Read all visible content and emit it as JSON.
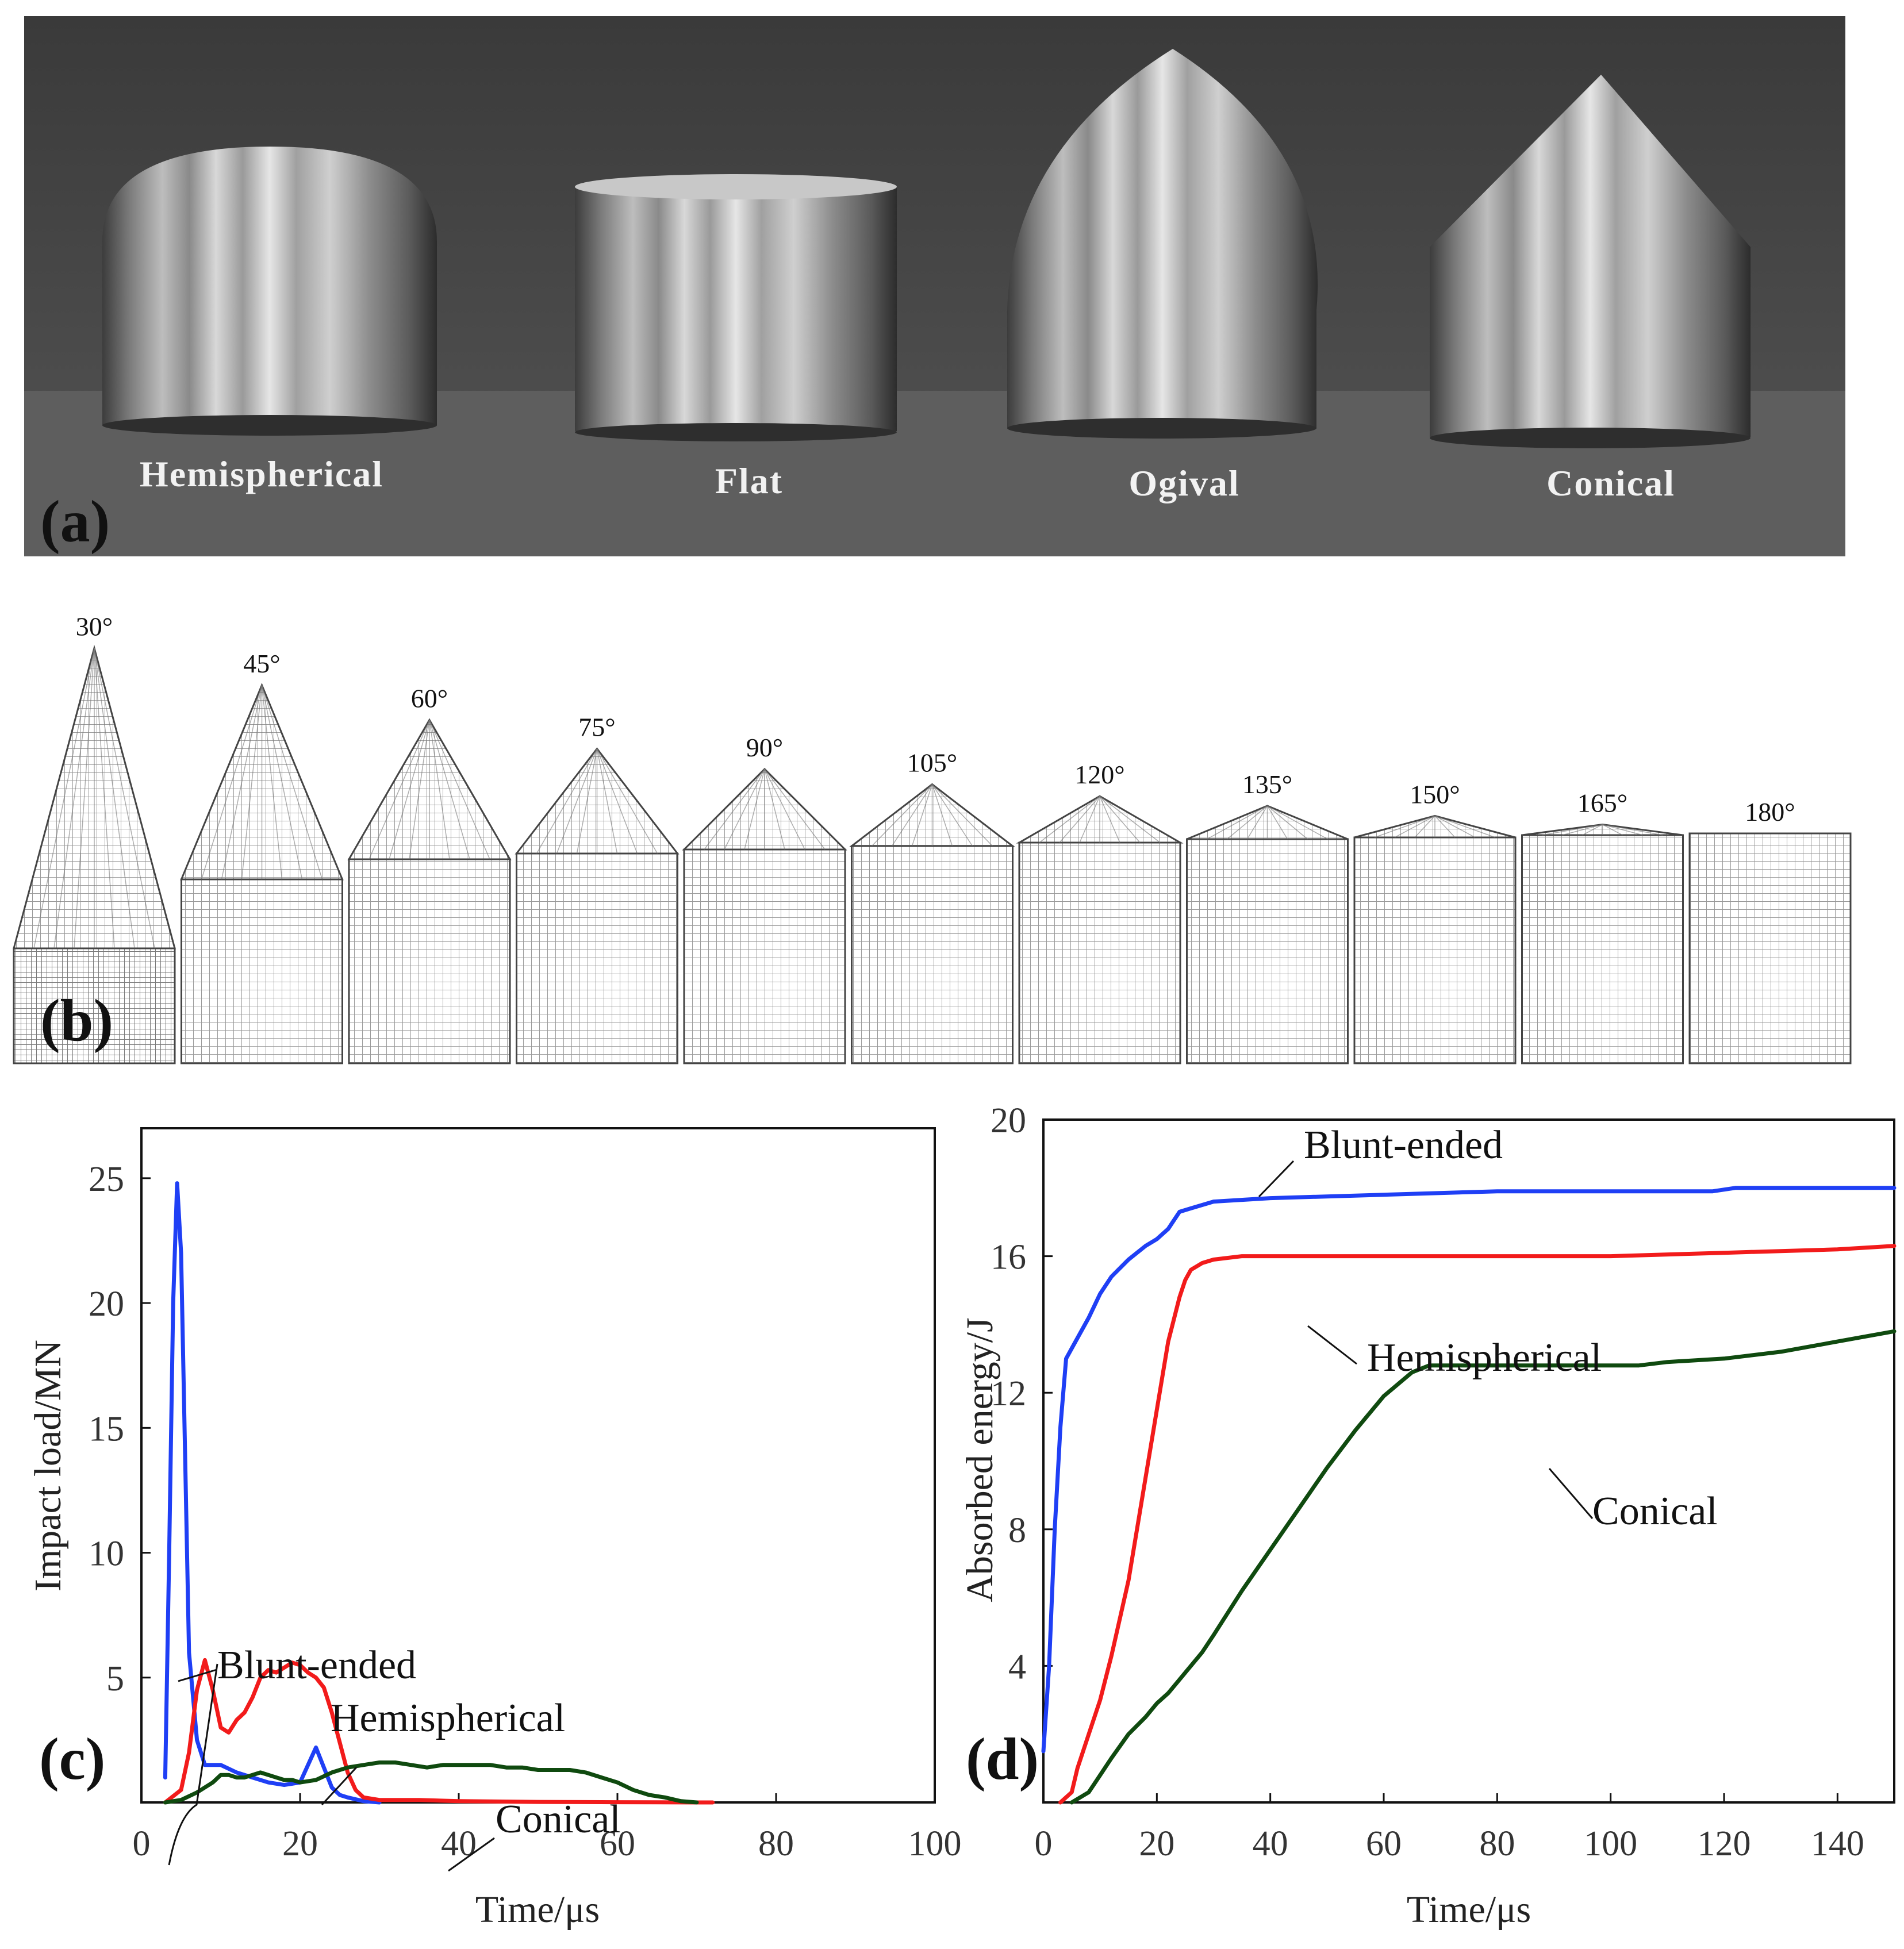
{
  "panel_a": {
    "label": "(a)",
    "projectiles": [
      {
        "name": "Hemispherical"
      },
      {
        "name": "Flat"
      },
      {
        "name": "Ogival"
      },
      {
        "name": "Conical"
      }
    ]
  },
  "panel_b": {
    "label": "(b)",
    "angles": [
      "30°",
      "45°",
      "60°",
      "75°",
      "90°",
      "105°",
      "120°",
      "135°",
      "150°",
      "165°",
      "180°"
    ]
  },
  "panel_c": {
    "label": "(c)",
    "annotations": {
      "blunt": "Blunt-ended",
      "hemi": "Hemispherical",
      "conical": "Conical"
    }
  },
  "panel_d": {
    "label": "(d)",
    "annotations": {
      "blunt": "Blunt-ended",
      "hemi": "Hemispherical",
      "conical": "Conical"
    }
  },
  "chart_data": [
    {
      "type": "line",
      "panel": "(c)",
      "title": "",
      "xlabel": "Time/μs",
      "ylabel": "Impact load/MN",
      "xlim": [
        0,
        100
      ],
      "ylim": [
        0,
        27
      ],
      "xticks": [
        "0",
        "20",
        "40",
        "60",
        "80",
        "100"
      ],
      "yticks": [
        "5",
        "10",
        "15",
        "20",
        "25"
      ],
      "series": [
        {
          "name": "Blunt-ended",
          "color": "#1f3ff5",
          "x": [
            3,
            3.5,
            4,
            4.5,
            5,
            5.5,
            6,
            7,
            8,
            10,
            12,
            14,
            16,
            18,
            20,
            21,
            22,
            23,
            24,
            25,
            26,
            28,
            30
          ],
          "y": [
            1,
            10,
            20,
            24.8,
            22,
            14,
            6,
            2.5,
            1.5,
            1.5,
            1.2,
            1.0,
            0.8,
            0.7,
            0.8,
            1.5,
            2.2,
            1.4,
            0.6,
            0.3,
            0.2,
            0.05,
            0
          ]
        },
        {
          "name": "Hemispherical",
          "color": "#f21b1b",
          "x": [
            3,
            5,
            6,
            7,
            8,
            9,
            10,
            11,
            12,
            13,
            14,
            15,
            16,
            17,
            18,
            19,
            20,
            21,
            22,
            23,
            24,
            25,
            26,
            27,
            28,
            30,
            35,
            40,
            50,
            60,
            70,
            72
          ],
          "y": [
            0,
            0.5,
            2,
            4.5,
            5.7,
            4.5,
            3,
            2.8,
            3.3,
            3.6,
            4.2,
            5.0,
            5.3,
            5.2,
            5.4,
            5.6,
            5.5,
            5.2,
            5.0,
            4.6,
            3.6,
            2.4,
            1.2,
            0.5,
            0.2,
            0.1,
            0.1,
            0.05,
            0.02,
            0.01,
            0,
            0
          ]
        },
        {
          "name": "Conical",
          "color": "#0f4a0f",
          "x": [
            3,
            5,
            7,
            9,
            10,
            11,
            12,
            13,
            14,
            15,
            16,
            17,
            18,
            19,
            20,
            22,
            24,
            26,
            28,
            30,
            32,
            34,
            36,
            38,
            40,
            42,
            44,
            46,
            48,
            50,
            52,
            54,
            56,
            58,
            60,
            62,
            64,
            66,
            68,
            70
          ],
          "y": [
            0,
            0.1,
            0.4,
            0.8,
            1.1,
            1.1,
            1.0,
            1.0,
            1.1,
            1.2,
            1.1,
            1.0,
            0.9,
            0.9,
            0.8,
            0.9,
            1.2,
            1.4,
            1.5,
            1.6,
            1.6,
            1.5,
            1.4,
            1.5,
            1.5,
            1.5,
            1.5,
            1.4,
            1.4,
            1.3,
            1.3,
            1.3,
            1.2,
            1.0,
            0.8,
            0.5,
            0.3,
            0.2,
            0.05,
            0
          ]
        }
      ]
    },
    {
      "type": "line",
      "panel": "(d)",
      "title": "",
      "xlabel": "Time/μs",
      "ylabel": "Absorbed energy/J",
      "xlim": [
        0,
        150
      ],
      "ylim": [
        0,
        20
      ],
      "xticks": [
        "0",
        "20",
        "40",
        "60",
        "80",
        "100",
        "120",
        "140"
      ],
      "yticks": [
        "4",
        "8",
        "12",
        "16",
        "20"
      ],
      "series": [
        {
          "name": "Blunt-ended",
          "color": "#1f3ff5",
          "x": [
            0,
            1,
            2,
            3,
            4,
            5,
            8,
            10,
            12,
            15,
            18,
            20,
            22,
            24,
            26,
            30,
            40,
            60,
            80,
            100,
            118,
            122,
            130,
            150
          ],
          "y": [
            1.5,
            4,
            8,
            11,
            13,
            13.3,
            14.2,
            14.9,
            15.4,
            15.9,
            16.3,
            16.5,
            16.8,
            17.3,
            17.4,
            17.6,
            17.7,
            17.8,
            17.9,
            17.9,
            17.9,
            18.0,
            18.0,
            18.0
          ]
        },
        {
          "name": "Hemispherical",
          "color": "#f21b1b",
          "x": [
            3,
            5,
            6,
            8,
            10,
            12,
            15,
            18,
            20,
            22,
            24,
            25,
            26,
            28,
            30,
            35,
            40,
            60,
            80,
            100,
            120,
            140,
            150
          ],
          "y": [
            0,
            0.3,
            1.0,
            2.0,
            3.0,
            4.3,
            6.5,
            9.5,
            11.5,
            13.5,
            14.8,
            15.3,
            15.6,
            15.8,
            15.9,
            16.0,
            16.0,
            16.0,
            16.0,
            16.0,
            16.1,
            16.2,
            16.3
          ]
        },
        {
          "name": "Conical",
          "color": "#0f4a0f",
          "x": [
            5,
            8,
            10,
            12,
            15,
            18,
            20,
            22,
            25,
            28,
            30,
            35,
            40,
            45,
            50,
            55,
            60,
            65,
            68,
            70,
            80,
            90,
            100,
            105,
            110,
            120,
            130,
            140,
            150
          ],
          "y": [
            0,
            0.3,
            0.8,
            1.3,
            2.0,
            2.5,
            2.9,
            3.2,
            3.8,
            4.4,
            4.9,
            6.2,
            7.4,
            8.6,
            9.8,
            10.9,
            11.9,
            12.6,
            12.8,
            12.8,
            12.8,
            12.8,
            12.8,
            12.8,
            12.9,
            13.0,
            13.2,
            13.5,
            13.8
          ]
        }
      ]
    }
  ]
}
